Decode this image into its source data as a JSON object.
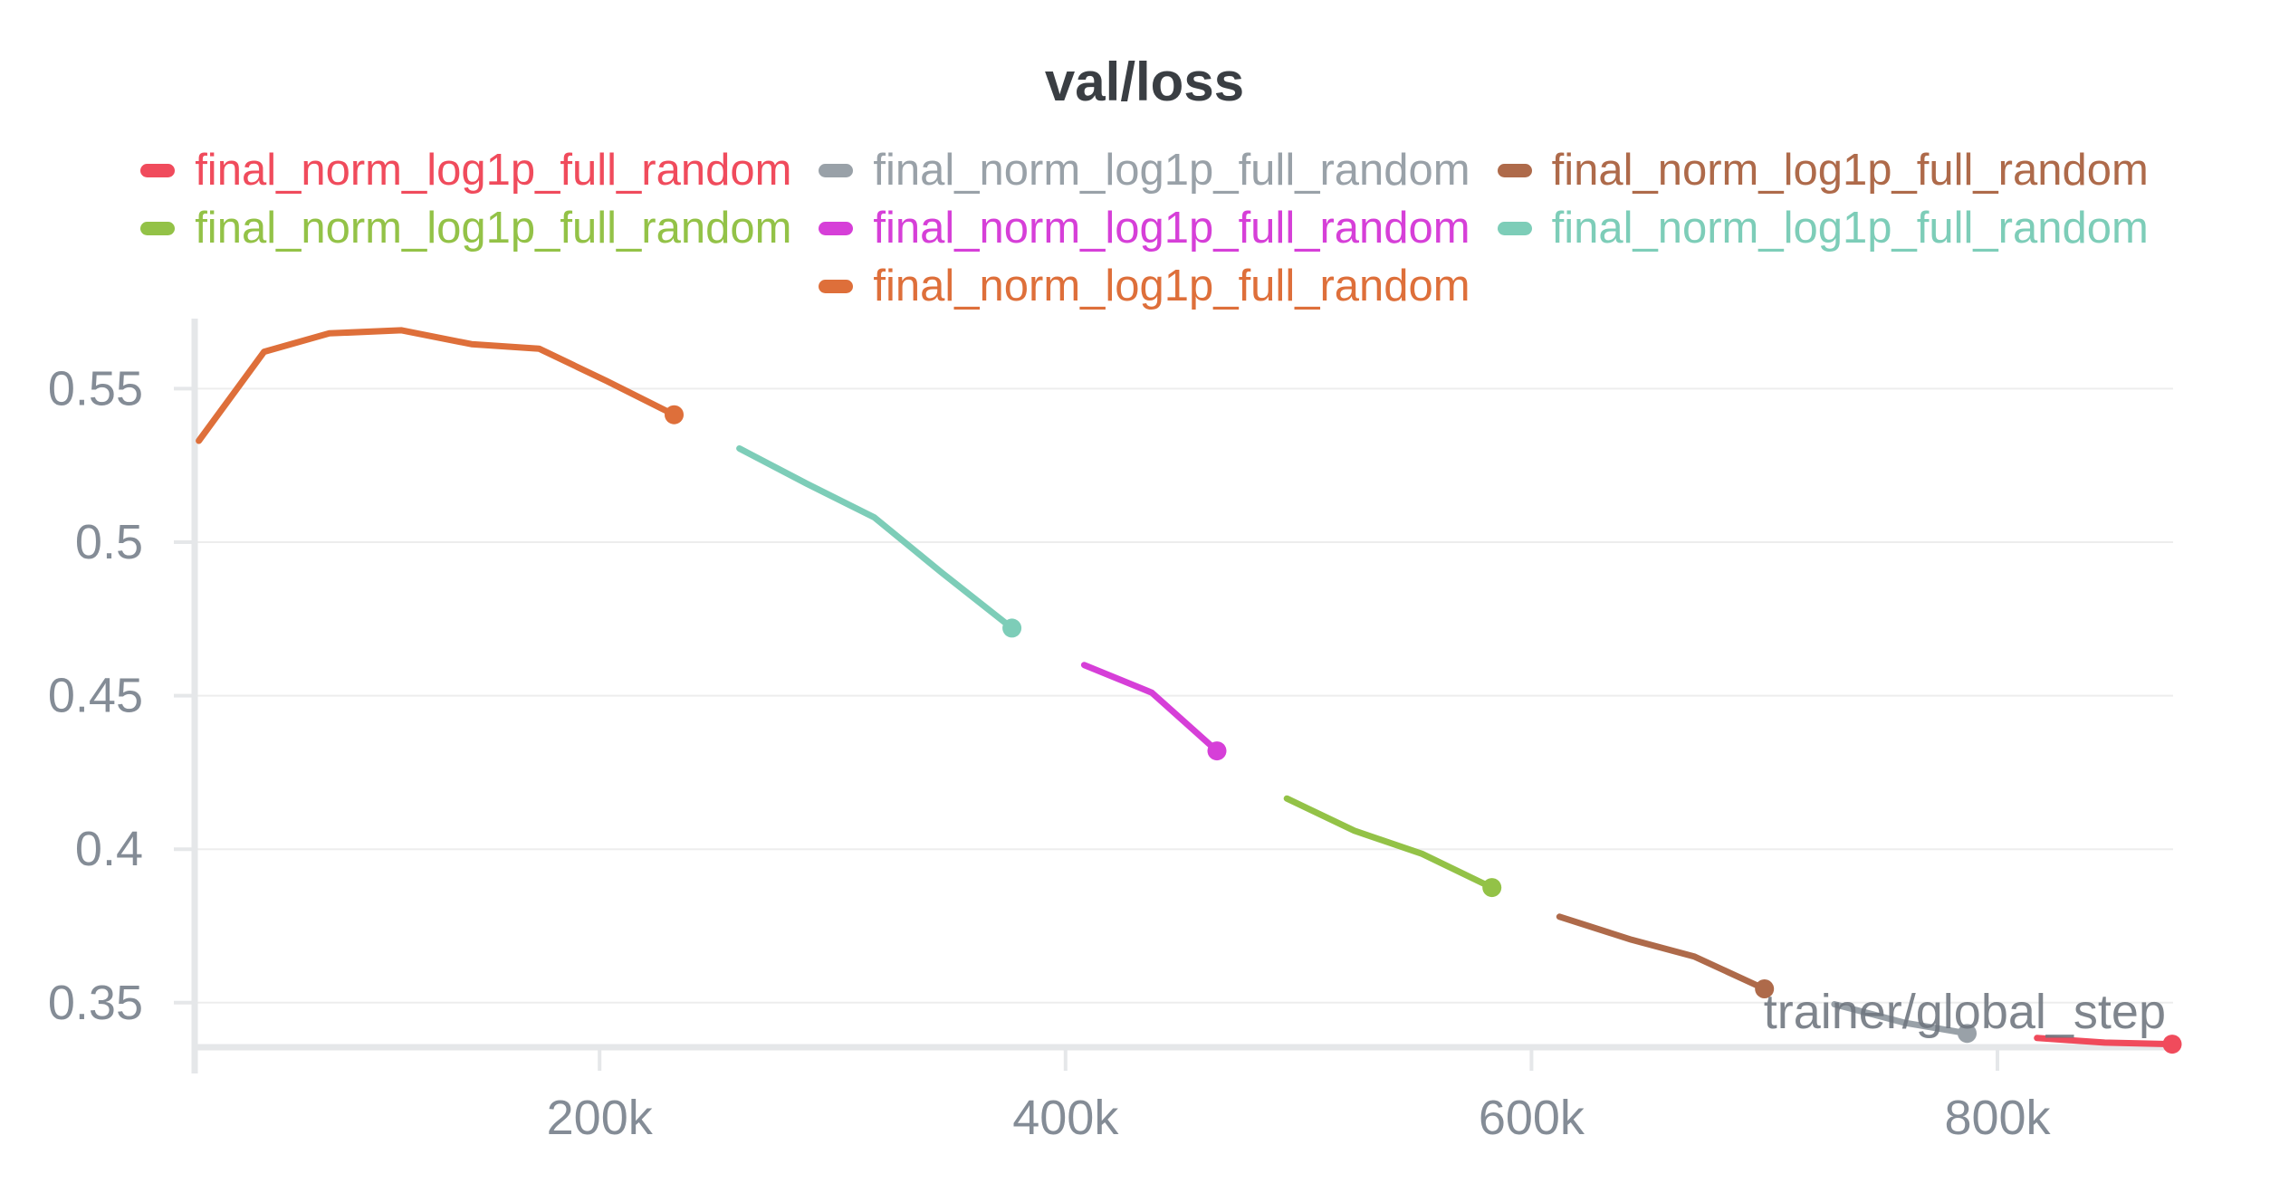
{
  "title": "val/loss",
  "legend": {
    "items": [
      {
        "label": "final_norm_log1p_full_random",
        "color": "#F04B5C"
      },
      {
        "label": "final_norm_log1p_full_random",
        "color": "#99A1A8"
      },
      {
        "label": "final_norm_log1p_full_random",
        "color": "#AE6A4A"
      },
      {
        "label": "final_norm_log1p_full_random",
        "color": "#93C247"
      },
      {
        "label": "final_norm_log1p_full_random",
        "color": "#D63FD8"
      },
      {
        "label": "final_norm_log1p_full_random",
        "color": "#7DCDB8"
      },
      {
        "label": "final_norm_log1p_full_random",
        "color": "#DE6F3A"
      }
    ]
  },
  "chart_data": {
    "type": "line",
    "title": "val/loss",
    "xlabel": "trainer/global_step",
    "ylabel": "",
    "x_domain": [
      26200,
      875400
    ],
    "y_domain": [
      0.3355,
      0.5728
    ],
    "x_ticks": [
      {
        "value": 200000,
        "label": "200k"
      },
      {
        "value": 400000,
        "label": "400k"
      },
      {
        "value": 600000,
        "label": "600k"
      },
      {
        "value": 800000,
        "label": "800k"
      }
    ],
    "y_ticks": [
      {
        "value": 0.35,
        "label": "0.35"
      },
      {
        "value": 0.4,
        "label": "0.4"
      },
      {
        "value": 0.45,
        "label": "0.45"
      },
      {
        "value": 0.5,
        "label": "0.5"
      },
      {
        "value": 0.55,
        "label": "0.55"
      }
    ],
    "grid": "horizontal-only",
    "legend_position": "top-center",
    "series": [
      {
        "name": "final_norm_log1p_full_random",
        "color": "#DE6F3A",
        "end_dot": true,
        "points": [
          [
            28000,
            0.533
          ],
          [
            56000,
            0.562
          ],
          [
            84000,
            0.568
          ],
          [
            115000,
            0.569
          ],
          [
            145000,
            0.5645
          ],
          [
            174000,
            0.563
          ],
          [
            203000,
            0.5525
          ],
          [
            232000,
            0.5415
          ]
        ]
      },
      {
        "name": "final_norm_log1p_full_random",
        "color": "#7DCDB8",
        "end_dot": true,
        "points": [
          [
            260000,
            0.5305
          ],
          [
            289000,
            0.519
          ],
          [
            318000,
            0.508
          ],
          [
            347000,
            0.49
          ],
          [
            377000,
            0.472
          ]
        ]
      },
      {
        "name": "final_norm_log1p_full_random",
        "color": "#D63FD8",
        "end_dot": true,
        "points": [
          [
            408000,
            0.46
          ],
          [
            437000,
            0.451
          ],
          [
            465000,
            0.432
          ]
        ]
      },
      {
        "name": "final_norm_log1p_full_random",
        "color": "#93C247",
        "end_dot": true,
        "points": [
          [
            495000,
            0.4165
          ],
          [
            524000,
            0.406
          ],
          [
            553000,
            0.3985
          ],
          [
            583000,
            0.3875
          ]
        ]
      },
      {
        "name": "final_norm_log1p_full_random",
        "color": "#AE6A4A",
        "end_dot": true,
        "points": [
          [
            612000,
            0.378
          ],
          [
            643000,
            0.3705
          ],
          [
            670000,
            0.365
          ],
          [
            700000,
            0.3545
          ]
        ]
      },
      {
        "name": "final_norm_log1p_full_random",
        "color": "#99A1A8",
        "end_dot": true,
        "points": [
          [
            730000,
            0.3495
          ],
          [
            760000,
            0.3435
          ],
          [
            787000,
            0.34
          ]
        ]
      },
      {
        "name": "final_norm_log1p_full_random",
        "color": "#F04B5C",
        "end_dot": true,
        "points": [
          [
            817000,
            0.3385
          ],
          [
            846000,
            0.337
          ],
          [
            875000,
            0.3365
          ]
        ]
      }
    ]
  }
}
